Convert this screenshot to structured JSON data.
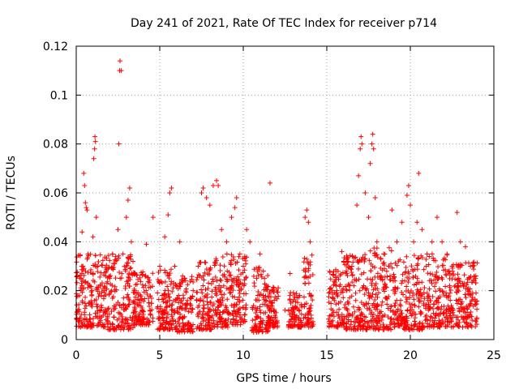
{
  "chart_data": {
    "type": "scatter",
    "title": "Day 241 of 2021, Rate Of TEC Index for receiver p714",
    "xlabel": "GPS time / hours",
    "ylabel": "ROTI / TECUs",
    "xlim": [
      0,
      24
    ],
    "ylim": [
      0,
      0.12
    ],
    "x_ticks": [
      0,
      5,
      10,
      15,
      20,
      25
    ],
    "x_tick_labels": [
      "0",
      "5",
      "10",
      "15",
      "20",
      "25"
    ],
    "y_ticks": [
      0,
      0.02,
      0.04,
      0.06,
      0.08,
      0.1,
      0.12
    ],
    "y_tick_labels": [
      "0",
      "0.02",
      "0.04",
      "0.06",
      "0.08",
      "0.1",
      "0.12"
    ],
    "grid": true,
    "marker": "+",
    "marker_color": "#ff0000",
    "points": [
      [
        0.1,
        0.012
      ],
      [
        0.2,
        0.018
      ],
      [
        0.3,
        0.025
      ],
      [
        0.35,
        0.044
      ],
      [
        0.4,
        0.03
      ],
      [
        0.45,
        0.068
      ],
      [
        0.5,
        0.063
      ],
      [
        0.55,
        0.056
      ],
      [
        0.6,
        0.054
      ],
      [
        0.65,
        0.053
      ],
      [
        0.7,
        0.035
      ],
      [
        0.8,
        0.022
      ],
      [
        0.9,
        0.015
      ],
      [
        1.0,
        0.042
      ],
      [
        1.05,
        0.074
      ],
      [
        1.1,
        0.078
      ],
      [
        1.12,
        0.083
      ],
      [
        1.15,
        0.081
      ],
      [
        1.2,
        0.05
      ],
      [
        1.3,
        0.03
      ],
      [
        1.5,
        0.014
      ],
      [
        1.7,
        0.02
      ],
      [
        2.0,
        0.025
      ],
      [
        2.3,
        0.031
      ],
      [
        2.5,
        0.045
      ],
      [
        2.55,
        0.08
      ],
      [
        2.6,
        0.11
      ],
      [
        2.62,
        0.114
      ],
      [
        2.7,
        0.11
      ],
      [
        2.8,
        0.035
      ],
      [
        3.0,
        0.05
      ],
      [
        3.1,
        0.057
      ],
      [
        3.2,
        0.062
      ],
      [
        3.3,
        0.04
      ],
      [
        3.5,
        0.02
      ],
      [
        3.8,
        0.015
      ],
      [
        4.2,
        0.039
      ],
      [
        4.6,
        0.05
      ],
      [
        5.0,
        0.03
      ],
      [
        5.3,
        0.042
      ],
      [
        5.5,
        0.051
      ],
      [
        5.6,
        0.06
      ],
      [
        5.7,
        0.062
      ],
      [
        5.9,
        0.03
      ],
      [
        6.2,
        0.04
      ],
      [
        6.5,
        0.025
      ],
      [
        7.0,
        0.02
      ],
      [
        7.3,
        0.03
      ],
      [
        7.5,
        0.06
      ],
      [
        7.6,
        0.062
      ],
      [
        7.8,
        0.058
      ],
      [
        8.0,
        0.055
      ],
      [
        8.2,
        0.063
      ],
      [
        8.4,
        0.065
      ],
      [
        8.5,
        0.063
      ],
      [
        8.7,
        0.045
      ],
      [
        9.0,
        0.04
      ],
      [
        9.3,
        0.05
      ],
      [
        9.5,
        0.054
      ],
      [
        9.6,
        0.058
      ],
      [
        9.8,
        0.035
      ],
      [
        10.0,
        0.03
      ],
      [
        10.2,
        0.045
      ],
      [
        10.4,
        0.04
      ],
      [
        10.8,
        0.025
      ],
      [
        11.0,
        0.035
      ],
      [
        11.2,
        0.028
      ],
      [
        11.6,
        0.064
      ],
      [
        11.7,
        0.02
      ],
      [
        12.5,
        0.012
      ],
      [
        12.8,
        0.027
      ],
      [
        13.0,
        0.012
      ],
      [
        13.3,
        0.008
      ],
      [
        13.7,
        0.05
      ],
      [
        13.8,
        0.053
      ],
      [
        13.9,
        0.048
      ],
      [
        14.0,
        0.04
      ],
      [
        15.6,
        0.02
      ],
      [
        15.9,
        0.036
      ],
      [
        16.2,
        0.02
      ],
      [
        16.5,
        0.03
      ],
      [
        16.8,
        0.055
      ],
      [
        16.9,
        0.067
      ],
      [
        17.0,
        0.078
      ],
      [
        17.05,
        0.083
      ],
      [
        17.1,
        0.08
      ],
      [
        17.3,
        0.06
      ],
      [
        17.5,
        0.05
      ],
      [
        17.6,
        0.072
      ],
      [
        17.7,
        0.08
      ],
      [
        17.75,
        0.084
      ],
      [
        17.8,
        0.078
      ],
      [
        17.9,
        0.058
      ],
      [
        18.0,
        0.04
      ],
      [
        18.4,
        0.035
      ],
      [
        18.7,
        0.03
      ],
      [
        18.9,
        0.053
      ],
      [
        19.2,
        0.04
      ],
      [
        19.5,
        0.048
      ],
      [
        19.8,
        0.059
      ],
      [
        19.9,
        0.063
      ],
      [
        20.0,
        0.055
      ],
      [
        20.2,
        0.04
      ],
      [
        20.4,
        0.048
      ],
      [
        20.5,
        0.068
      ],
      [
        20.7,
        0.045
      ],
      [
        21.0,
        0.035
      ],
      [
        21.3,
        0.04
      ],
      [
        21.6,
        0.05
      ],
      [
        21.9,
        0.04
      ],
      [
        22.2,
        0.035
      ],
      [
        22.5,
        0.03
      ],
      [
        22.8,
        0.052
      ],
      [
        23.0,
        0.04
      ],
      [
        23.3,
        0.038
      ],
      [
        23.6,
        0.03
      ],
      [
        23.9,
        0.025
      ]
    ],
    "dense_bands": [
      {
        "x": [
          0.0,
          1.6
        ],
        "y": [
          0.005,
          0.035
        ]
      },
      {
        "x": [
          1.6,
          3.4
        ],
        "y": [
          0.004,
          0.035
        ]
      },
      {
        "x": [
          3.4,
          4.6
        ],
        "y": [
          0.006,
          0.028
        ]
      },
      {
        "x": [
          4.8,
          6.0
        ],
        "y": [
          0.004,
          0.03
        ]
      },
      {
        "x": [
          6.0,
          7.0
        ],
        "y": [
          0.003,
          0.026
        ]
      },
      {
        "x": [
          7.2,
          8.2
        ],
        "y": [
          0.004,
          0.032
        ]
      },
      {
        "x": [
          8.2,
          9.3
        ],
        "y": [
          0.005,
          0.035
        ]
      },
      {
        "x": [
          9.3,
          10.2
        ],
        "y": [
          0.006,
          0.035
        ]
      },
      {
        "x": [
          10.5,
          11.5
        ],
        "y": [
          0.003,
          0.03
        ]
      },
      {
        "x": [
          11.5,
          12.1
        ],
        "y": [
          0.005,
          0.022
        ]
      },
      {
        "x": [
          12.7,
          13.5
        ],
        "y": [
          0.005,
          0.02
        ]
      },
      {
        "x": [
          13.6,
          14.2
        ],
        "y": [
          0.005,
          0.035
        ]
      },
      {
        "x": [
          15.1,
          16.0
        ],
        "y": [
          0.005,
          0.03
        ]
      },
      {
        "x": [
          16.0,
          17.5
        ],
        "y": [
          0.004,
          0.035
        ]
      },
      {
        "x": [
          17.5,
          19.0
        ],
        "y": [
          0.004,
          0.038
        ]
      },
      {
        "x": [
          19.0,
          20.8
        ],
        "y": [
          0.004,
          0.035
        ]
      },
      {
        "x": [
          20.8,
          22.5
        ],
        "y": [
          0.005,
          0.035
        ]
      },
      {
        "x": [
          22.5,
          24.0
        ],
        "y": [
          0.005,
          0.032
        ]
      }
    ]
  }
}
